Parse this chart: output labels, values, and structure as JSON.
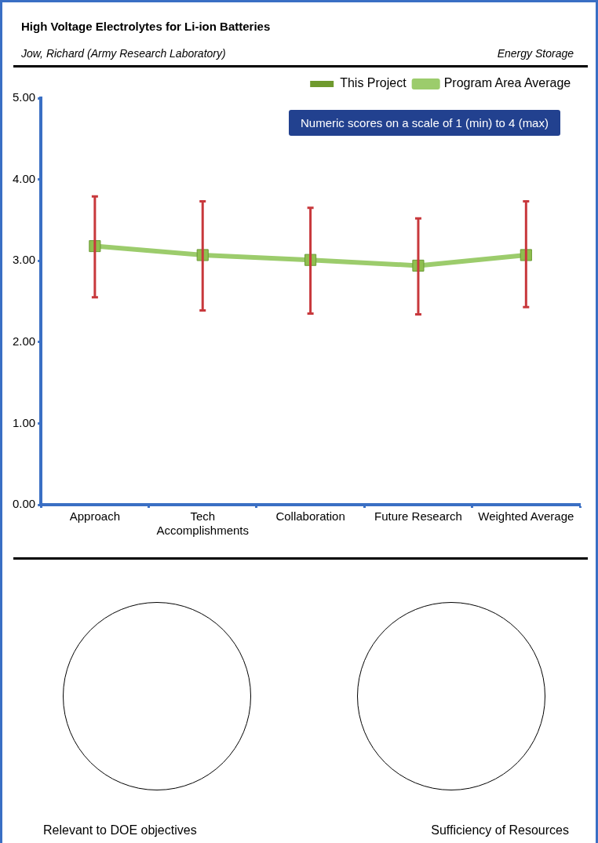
{
  "chart_data": {
    "type": "line",
    "title": "High Voltage Electrolytes for Li-ion Batteries",
    "subtitle": "Jow, Richard (Army Research Laboratory)",
    "annotations": [
      "Energy Storage",
      "Numeric scores on a scale of 1 (min) to 4 (max)",
      "Relevant to DOE objectives",
      "Sufficiency of Resources"
    ],
    "categories": [
      "Approach",
      "Tech Accomplishments",
      "Collaboration",
      "Future Research",
      "Weighted Average"
    ],
    "series": [
      {
        "name": "This Project",
        "type": "bar",
        "color": "#6f9a2e",
        "values": [
          null,
          null,
          null,
          null,
          null
        ]
      },
      {
        "name": "Program Area Average",
        "color": "#9ccc6c",
        "values": [
          3.18,
          3.07,
          3.01,
          2.94,
          3.07
        ],
        "errors": [
          [
            2.55,
            3.79
          ],
          [
            2.39,
            3.73
          ],
          [
            2.35,
            3.65
          ],
          [
            2.34,
            3.52
          ],
          [
            2.43,
            3.73
          ]
        ]
      }
    ],
    "ylim": [
      0,
      5
    ],
    "yticks": [
      {
        "value": 0,
        "label": "0.00"
      },
      {
        "value": 1,
        "label": "1.00"
      },
      {
        "value": 2,
        "label": "2.00"
      },
      {
        "value": 3,
        "label": "3.00"
      },
      {
        "value": 4,
        "label": "4.00"
      },
      {
        "value": 5,
        "label": "5.00"
      }
    ],
    "grid": false,
    "legend": "top right",
    "marker": "square",
    "line_style": "solid"
  }
}
